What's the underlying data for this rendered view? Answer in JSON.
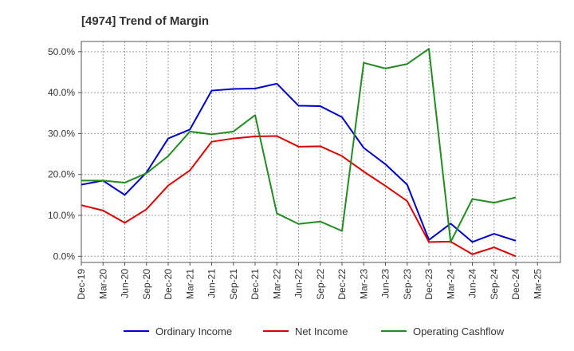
{
  "chart_data": {
    "type": "line",
    "title": "[4974]  Trend of Margin",
    "xlabel": "",
    "ylabel": "",
    "ylim": [
      -1.5,
      52.5
    ],
    "y_ticks": [
      "0.0%",
      "10.0%",
      "20.0%",
      "30.0%",
      "40.0%",
      "50.0%"
    ],
    "y_tick_values": [
      0,
      10,
      20,
      30,
      40,
      50
    ],
    "grid": true,
    "legend_position": "bottom",
    "x_tick_labels": [
      "Dec-19",
      "Mar-20",
      "Jun-20",
      "Sep-20",
      "Dec-20",
      "Mar-21",
      "Jun-21",
      "Sep-21",
      "Dec-21",
      "Mar-22",
      "Jun-22",
      "Sep-22",
      "Dec-22",
      "Mar-23",
      "Jun-23",
      "Sep-23",
      "Dec-23",
      "Mar-24",
      "Jun-24",
      "Sep-24",
      "Dec-24",
      "Mar-25"
    ],
    "categories": [
      "Dec-19",
      "Mar-20",
      "Jun-20",
      "Sep-20",
      "Dec-20",
      "Mar-21",
      "Jun-21",
      "Sep-21",
      "Dec-21",
      "Mar-22",
      "Jun-22",
      "Sep-22",
      "Dec-22",
      "Mar-23",
      "Jun-23",
      "Sep-23",
      "Dec-23",
      "Mar-24",
      "Jun-24",
      "Sep-24",
      "Dec-24"
    ],
    "series": [
      {
        "name": "Ordinary Income",
        "color": "#0000cc",
        "values": [
          17.5,
          18.5,
          15.0,
          20.5,
          28.8,
          31.0,
          40.5,
          40.9,
          41.0,
          42.2,
          36.8,
          36.7,
          34.0,
          26.5,
          22.5,
          17.5,
          4.0,
          8.0,
          3.5,
          5.5,
          3.8
        ]
      },
      {
        "name": "Net Income",
        "color": "#dd0000",
        "values": [
          12.5,
          11.2,
          8.2,
          11.5,
          17.3,
          21.0,
          28.0,
          28.8,
          29.3,
          29.4,
          26.8,
          26.9,
          24.5,
          20.7,
          17.2,
          13.5,
          3.5,
          3.6,
          0.5,
          2.2,
          0.0
        ]
      },
      {
        "name": "Operating Cashflow",
        "color": "#228b22",
        "values": [
          18.5,
          18.5,
          18.0,
          20.3,
          24.5,
          30.5,
          29.8,
          30.5,
          34.5,
          10.5,
          7.9,
          8.5,
          6.2,
          47.3,
          45.9,
          47.0,
          50.7,
          3.5,
          14.0,
          13.1,
          14.4
        ]
      }
    ]
  }
}
